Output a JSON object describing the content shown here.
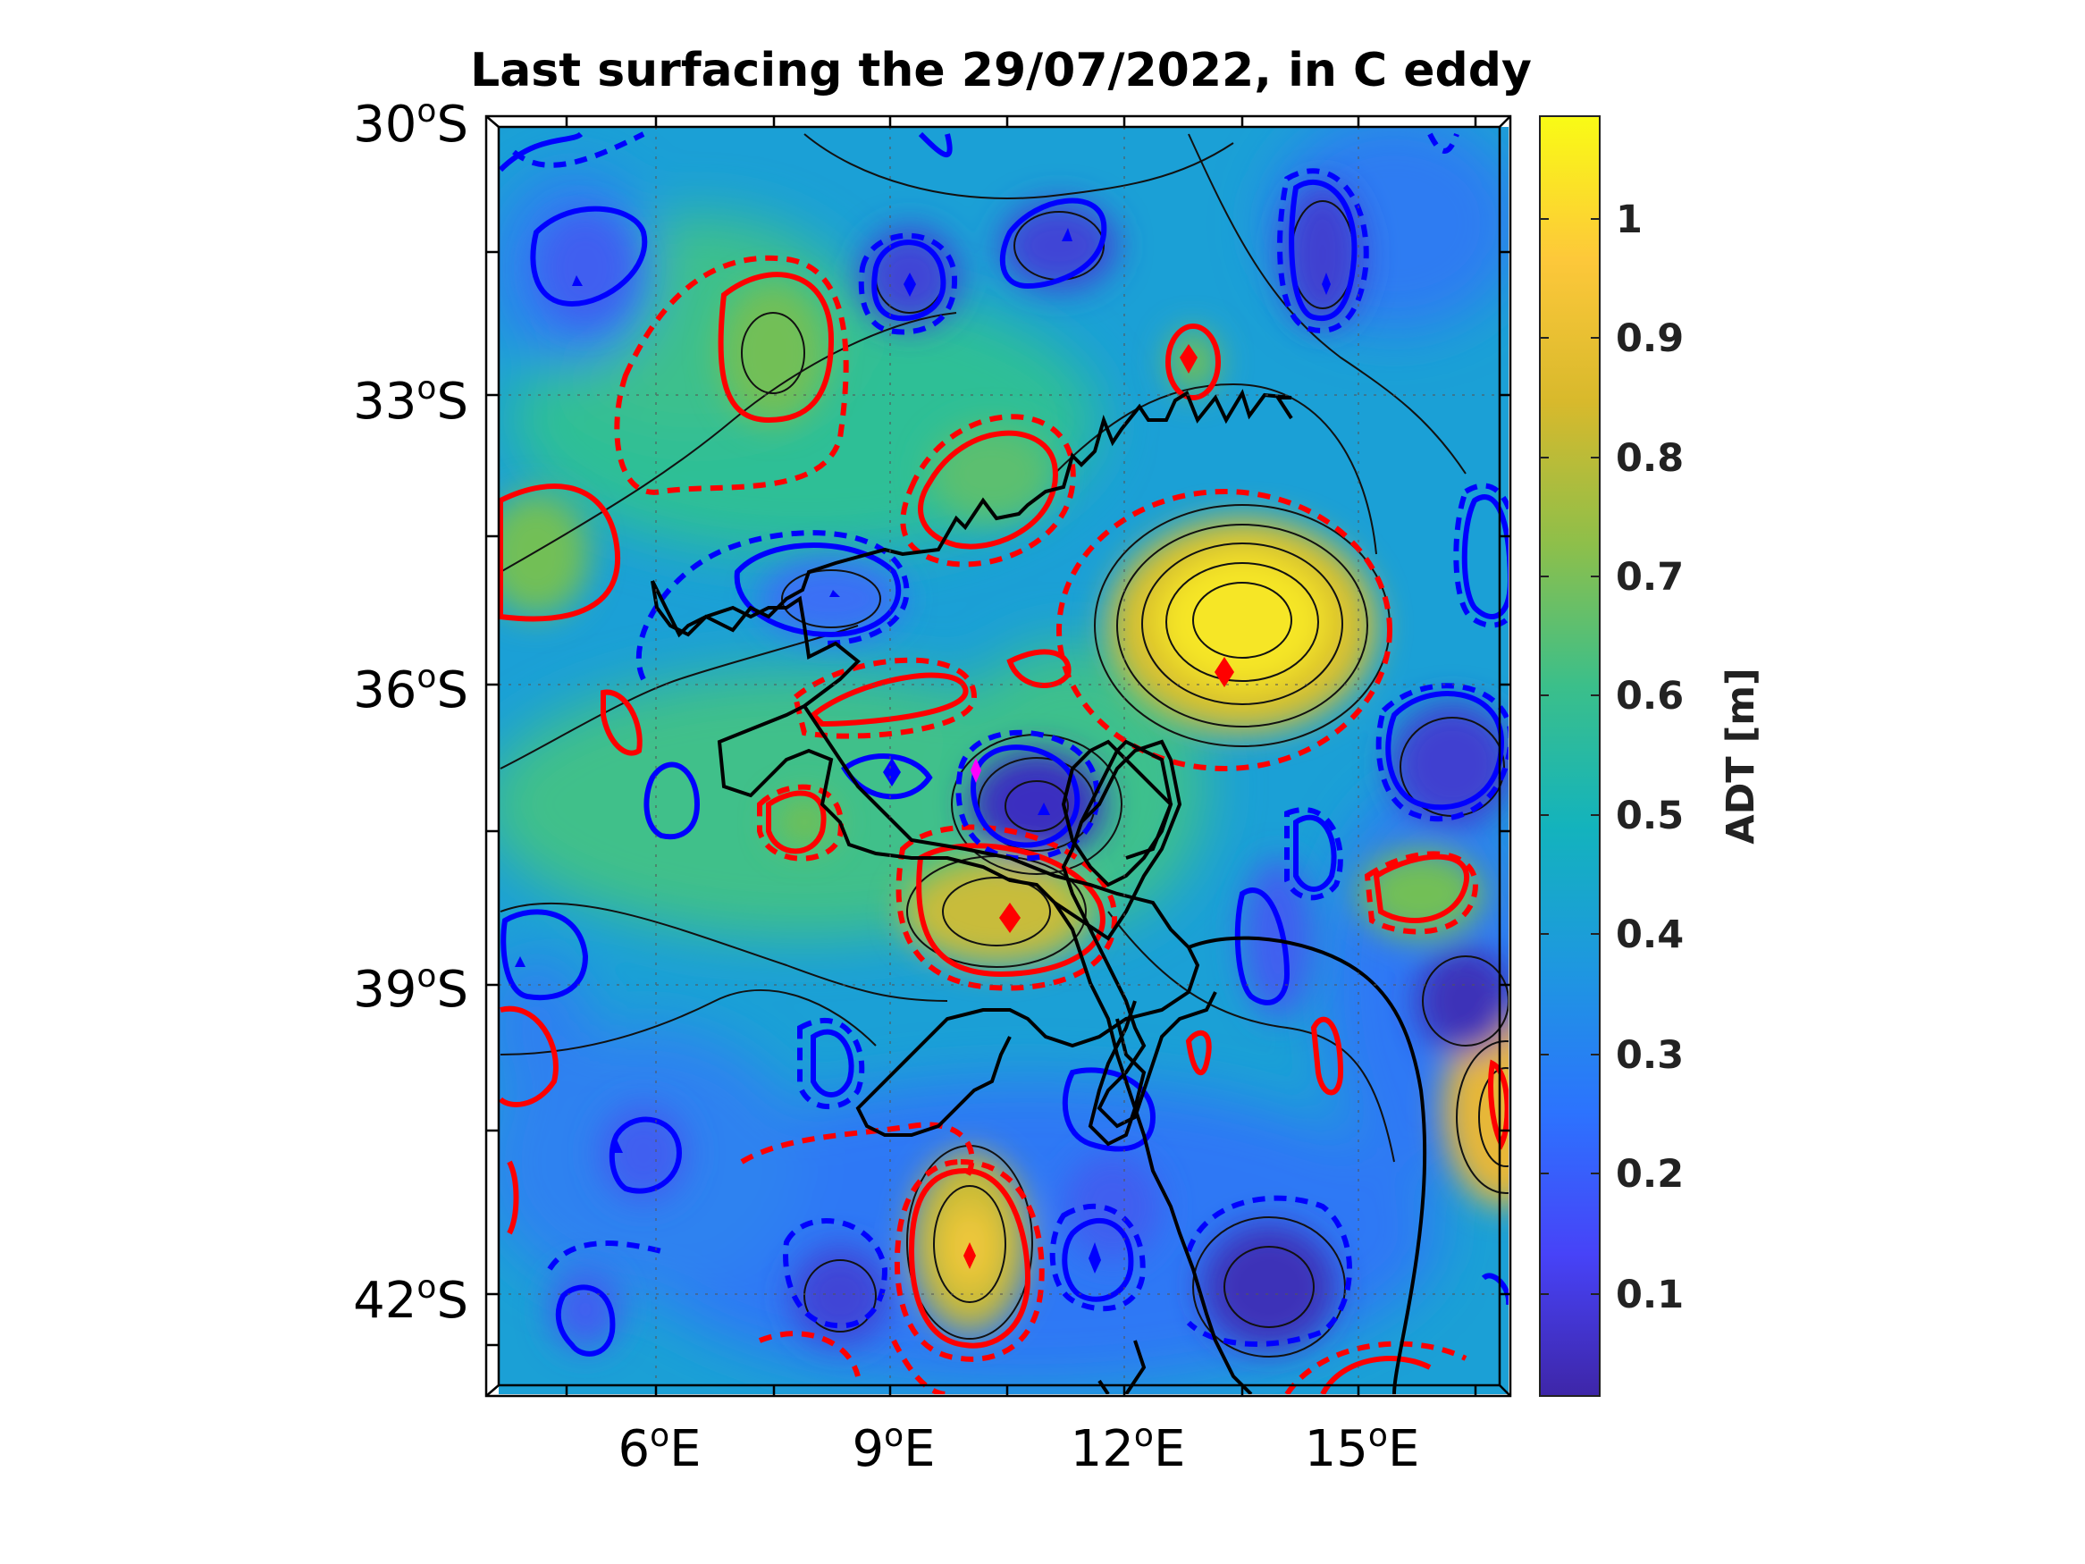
{
  "title": "Last surfacing the 29/07/2022, in C eddy",
  "map": {
    "lat_ticks": [
      {
        "value": -30,
        "num": "30",
        "hemi": "S"
      },
      {
        "value": -33,
        "num": "33",
        "hemi": "S"
      },
      {
        "value": -36,
        "num": "36",
        "hemi": "S"
      },
      {
        "value": -39,
        "num": "39",
        "hemi": "S"
      },
      {
        "value": -42,
        "num": "42",
        "hemi": "S"
      }
    ],
    "lon_ticks": [
      {
        "value": 6,
        "num": "6",
        "hemi": "E"
      },
      {
        "value": 9,
        "num": "9",
        "hemi": "E"
      },
      {
        "value": 12,
        "num": "12",
        "hemi": "E"
      },
      {
        "value": 15,
        "num": "15",
        "hemi": "E"
      }
    ],
    "degree_symbol": "o",
    "colors": {
      "cyclonic_contour": "#0000ff",
      "anticyclonic_contour": "#ff0000",
      "float_track": "#000000",
      "last_position_marker": "#ff00ff"
    }
  },
  "colorbar": {
    "label": "ADT [m]",
    "ticks": [
      "0.1",
      "0.2",
      "0.3",
      "0.4",
      "0.5",
      "0.6",
      "0.7",
      "0.8",
      "0.9",
      "1"
    ],
    "colormap": "parula",
    "stops": [
      "#3e26a8",
      "#4743f8",
      "#2c73fe",
      "#1e97e0",
      "#13b3bd",
      "#3bbf8a",
      "#8ebf4a",
      "#d8b92c",
      "#fdc83a",
      "#f9fb15"
    ]
  },
  "chart_data": {
    "type": "heatmap",
    "variable": "ADT",
    "units": "m",
    "colorbar_range": [
      0.02,
      1.08
    ],
    "anticyclonic_centers": [
      {
        "lon": 13.2,
        "lat": -35.9,
        "adt": 1.05
      },
      {
        "lon": 10.5,
        "lat": -38.2,
        "adt": 0.9
      },
      {
        "lon": 10.0,
        "lat": -41.7,
        "adt": 0.88
      },
      {
        "lon": 12.8,
        "lat": -32.7,
        "adt": 0.72
      },
      {
        "lon": 7.7,
        "lat": -32.7,
        "adt": 0.7
      },
      {
        "lon": 16.7,
        "lat": -40.3,
        "adt": 0.85
      },
      {
        "lon": 4.3,
        "lat": -34.8,
        "adt": 0.66
      },
      {
        "lon": 16.0,
        "lat": -38.0,
        "adt": 0.7
      },
      {
        "lon": 10.0,
        "lat": -33.8,
        "adt": 0.66
      }
    ],
    "cyclonic_centers": [
      {
        "lon": 11.0,
        "lat": -37.3,
        "adt": 0.12
      },
      {
        "lon": 9.3,
        "lat": -31.8,
        "adt": 0.15
      },
      {
        "lon": 11.8,
        "lat": -31.4,
        "adt": 0.18
      },
      {
        "lon": 14.8,
        "lat": -31.6,
        "adt": 0.15
      },
      {
        "lon": 13.8,
        "lat": -42.0,
        "adt": 0.1
      },
      {
        "lon": 16.2,
        "lat": -36.9,
        "adt": 0.12
      },
      {
        "lon": 16.4,
        "lat": -39.0,
        "adt": 0.1
      },
      {
        "lon": 4.8,
        "lat": -31.8,
        "adt": 0.22
      },
      {
        "lon": 8.3,
        "lat": -35.1,
        "adt": 0.28
      },
      {
        "lon": 9.0,
        "lat": -36.9,
        "adt": 0.3
      },
      {
        "lon": 8.3,
        "lat": -42.1,
        "adt": 0.2
      },
      {
        "lon": 6.0,
        "lat": -40.8,
        "adt": 0.22
      },
      {
        "lon": 5.0,
        "lat": -42.1,
        "adt": 0.25
      },
      {
        "lon": 14.6,
        "lat": -37.7,
        "adt": 0.25
      },
      {
        "lon": 11.7,
        "lat": -41.7,
        "adt": 0.25
      },
      {
        "lon": 11.8,
        "lat": -40.2,
        "adt": 0.28
      }
    ],
    "last_surfacing": {
      "lon": 10.1,
      "lat": -36.9
    }
  }
}
